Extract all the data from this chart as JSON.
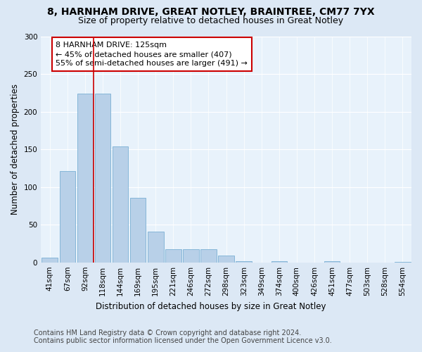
{
  "title1": "8, HARNHAM DRIVE, GREAT NOTLEY, BRAINTREE, CM77 7YX",
  "title2": "Size of property relative to detached houses in Great Notley",
  "xlabel": "Distribution of detached houses by size in Great Notley",
  "ylabel": "Number of detached properties",
  "categories": [
    "41sqm",
    "67sqm",
    "92sqm",
    "118sqm",
    "144sqm",
    "169sqm",
    "195sqm",
    "221sqm",
    "246sqm",
    "272sqm",
    "298sqm",
    "323sqm",
    "349sqm",
    "374sqm",
    "400sqm",
    "426sqm",
    "451sqm",
    "477sqm",
    "503sqm",
    "528sqm",
    "554sqm"
  ],
  "values": [
    7,
    121,
    224,
    224,
    154,
    86,
    41,
    18,
    18,
    18,
    9,
    2,
    0,
    2,
    0,
    0,
    2,
    0,
    0,
    0,
    1
  ],
  "bar_color": "#b8d0e8",
  "bar_edge_color": "#7aafd4",
  "vline_color": "#cc0000",
  "vline_xindex": 2.5,
  "annotation_text": "8 HARNHAM DRIVE: 125sqm\n← 45% of detached houses are smaller (407)\n55% of semi-detached houses are larger (491) →",
  "annotation_box_facecolor": "#ffffff",
  "annotation_box_edgecolor": "#cc0000",
  "ylim": [
    0,
    300
  ],
  "yticks": [
    0,
    50,
    100,
    150,
    200,
    250,
    300
  ],
  "footer1": "Contains HM Land Registry data © Crown copyright and database right 2024.",
  "footer2": "Contains public sector information licensed under the Open Government Licence v3.0.",
  "bg_color": "#dce8f5",
  "plot_bg_color": "#e8f2fb",
  "title1_fontsize": 10,
  "title2_fontsize": 9,
  "xlabel_fontsize": 8.5,
  "ylabel_fontsize": 8.5,
  "tick_fontsize": 7.5,
  "footer_fontsize": 7,
  "annot_fontsize": 8
}
